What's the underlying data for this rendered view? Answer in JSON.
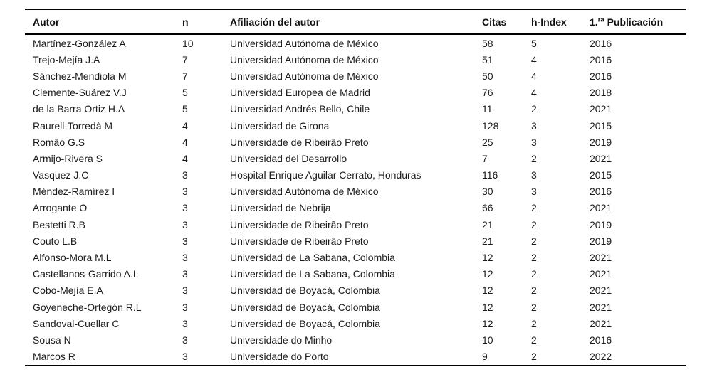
{
  "page": {
    "background_color": "#ffffff",
    "text_color": "#1b1b1b",
    "rule_color": "#000000"
  },
  "table": {
    "headers": {
      "autor": "Autor",
      "n": "n",
      "afiliacion": "Afiliación del autor",
      "citas": "Citas",
      "h_index": "h-Index",
      "publicacion": {
        "prefix": "1.",
        "sup": "ra",
        "rest": "Publicación"
      }
    },
    "rows": [
      {
        "author": "Martínez-González A",
        "n": "10",
        "affiliation": "Universidad Autónoma de México",
        "citas": "58",
        "h_index": "5",
        "first_pub": "2016"
      },
      {
        "author": "Trejo-Mejía J.A",
        "n": "7",
        "affiliation": "Universidad Autónoma de México",
        "citas": "51",
        "h_index": "4",
        "first_pub": "2016"
      },
      {
        "author": "Sánchez-Mendiola M",
        "n": "7",
        "affiliation": "Universidad Autónoma de México",
        "citas": "50",
        "h_index": "4",
        "first_pub": "2016"
      },
      {
        "author": "Clemente-Suárez V.J",
        "n": "5",
        "affiliation": "Universidad Europea de Madrid",
        "citas": "76",
        "h_index": "4",
        "first_pub": "2018"
      },
      {
        "author": "de la Barra Ortiz H.A",
        "n": "5",
        "affiliation": "Universidad Andrés Bello, Chile",
        "citas": "11",
        "h_index": "2",
        "first_pub": "2021"
      },
      {
        "author": "Raurell-Torredà M",
        "n": "4",
        "affiliation": "Universidad de Girona",
        "citas": "128",
        "h_index": "3",
        "first_pub": "2015"
      },
      {
        "author": "Romão G.S",
        "n": "4",
        "affiliation": "Universidade de Ribeirão Preto",
        "citas": "25",
        "h_index": "3",
        "first_pub": "2019"
      },
      {
        "author": "Armijo-Rivera S",
        "n": "4",
        "affiliation": "Universidad del Desarrollo",
        "citas": "7",
        "h_index": "2",
        "first_pub": "2021"
      },
      {
        "author": "Vasquez J.C",
        "n": "3",
        "affiliation": "Hospital Enrique Aguilar Cerrato, Honduras",
        "citas": "116",
        "h_index": "3",
        "first_pub": "2015"
      },
      {
        "author": "Méndez-Ramírez I",
        "n": "3",
        "affiliation": "Universidad Autónoma de México",
        "citas": "30",
        "h_index": "3",
        "first_pub": "2016"
      },
      {
        "author": "Arrogante O",
        "n": "3",
        "affiliation": "Universidad de Nebrija",
        "citas": "66",
        "h_index": "2",
        "first_pub": "2021"
      },
      {
        "author": "Bestetti R.B",
        "n": "3",
        "affiliation": "Universidade de Ribeirão Preto",
        "citas": "21",
        "h_index": "2",
        "first_pub": "2019"
      },
      {
        "author": "Couto L.B",
        "n": "3",
        "affiliation": "Universidade de Ribeirão Preto",
        "citas": "21",
        "h_index": "2",
        "first_pub": "2019"
      },
      {
        "author": "Alfonso-Mora M.L",
        "n": "3",
        "affiliation": "Universidad de La Sabana, Colombia",
        "citas": "12",
        "h_index": "2",
        "first_pub": "2021"
      },
      {
        "author": "Castellanos-Garrido A.L",
        "n": "3",
        "affiliation": "Universidad de La Sabana, Colombia",
        "citas": "12",
        "h_index": "2",
        "first_pub": "2021"
      },
      {
        "author": "Cobo-Mejía E.A",
        "n": "3",
        "affiliation": "Universidad de Boyacá, Colombia",
        "citas": "12",
        "h_index": "2",
        "first_pub": "2021"
      },
      {
        "author": "Goyeneche-Ortegón R.L",
        "n": "3",
        "affiliation": "Universidad de Boyacá, Colombia",
        "citas": "12",
        "h_index": "2",
        "first_pub": "2021"
      },
      {
        "author": "Sandoval-Cuellar C",
        "n": "3",
        "affiliation": "Universidad de Boyacá, Colombia",
        "citas": "12",
        "h_index": "2",
        "first_pub": "2021"
      },
      {
        "author": "Sousa N",
        "n": "3",
        "affiliation": "Universidade do Minho",
        "citas": "10",
        "h_index": "2",
        "first_pub": "2016"
      },
      {
        "author": "Marcos R",
        "n": "3",
        "affiliation": "Universidade do Porto",
        "citas": "9",
        "h_index": "2",
        "first_pub": "2022"
      }
    ]
  }
}
